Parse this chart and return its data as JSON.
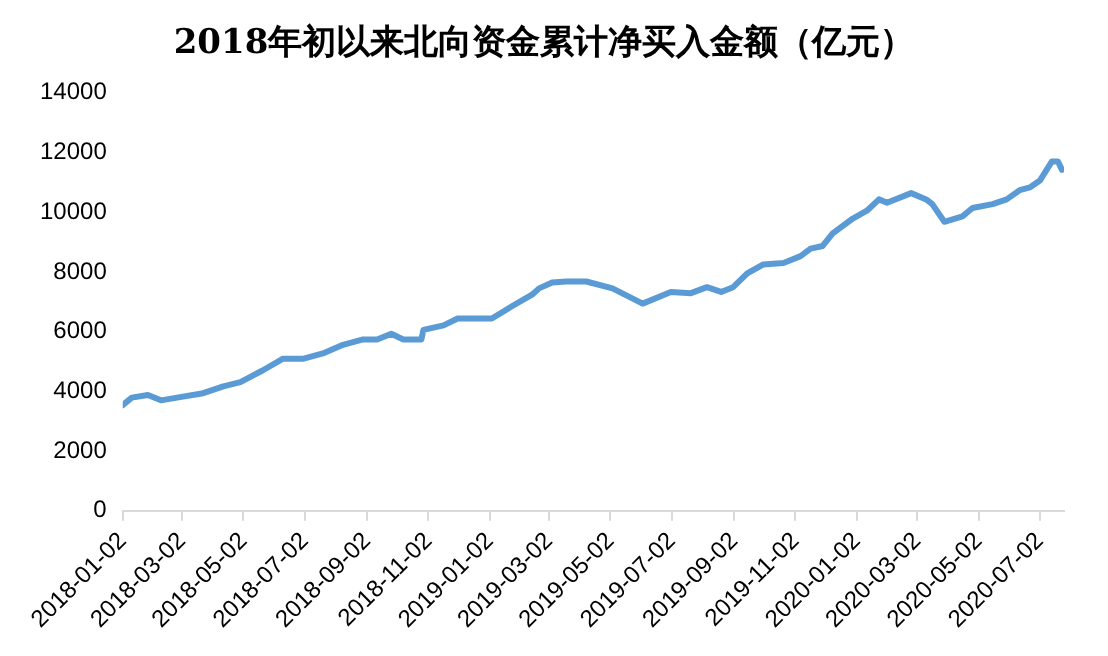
{
  "chart_data": {
    "type": "line",
    "title": "2018年初以来北向资金累计净买入金额（亿元）",
    "x": [
      "2018-01-02",
      "2018-01-11",
      "2018-01-27",
      "2018-02-09",
      "2018-02-25",
      "2018-03-23",
      "2018-04-12",
      "2018-04-29",
      "2018-05-21",
      "2018-06-10",
      "2018-06-30",
      "2018-07-20",
      "2018-08-09",
      "2018-08-29",
      "2018-09-12",
      "2018-09-26",
      "2018-10-08",
      "2018-10-26",
      "2018-10-28",
      "2018-11-17",
      "2018-12-01",
      "2019-01-04",
      "2019-01-24",
      "2019-02-13",
      "2019-02-20",
      "2019-03-05",
      "2019-03-19",
      "2019-04-08",
      "2019-05-04",
      "2019-06-03",
      "2019-07-01",
      "2019-07-21",
      "2019-08-06",
      "2019-08-20",
      "2019-09-01",
      "2019-09-15",
      "2019-10-01",
      "2019-10-21",
      "2019-11-07",
      "2019-11-17",
      "2019-11-29",
      "2019-12-09",
      "2019-12-29",
      "2020-01-12",
      "2020-01-24",
      "2020-02-01",
      "2020-02-25",
      "2020-03-11",
      "2020-03-17",
      "2020-03-29",
      "2020-04-16",
      "2020-04-26",
      "2020-05-16",
      "2020-05-30",
      "2020-06-12",
      "2020-06-22",
      "2020-07-02",
      "2020-07-14",
      "2020-07-20",
      "2020-07-24"
    ],
    "series": [
      {
        "color": "#5b9bd5",
        "values": [
          3540,
          3790,
          3880,
          3700,
          3790,
          3940,
          4170,
          4310,
          4700,
          5090,
          5090,
          5270,
          5560,
          5740,
          5740,
          5930,
          5740,
          5740,
          6060,
          6210,
          6440,
          6440,
          6850,
          7240,
          7450,
          7650,
          7680,
          7680,
          7450,
          6940,
          7330,
          7290,
          7490,
          7330,
          7490,
          7950,
          8250,
          8300,
          8530,
          8780,
          8870,
          9290,
          9790,
          10050,
          10430,
          10320,
          10640,
          10430,
          10270,
          9680,
          9860,
          10140,
          10270,
          10430,
          10740,
          10830,
          11060,
          11700,
          11700,
          11420
        ]
      }
    ],
    "xlim": [
      "2018-01-02",
      "2020-07-26"
    ],
    "xticks": [
      "2018-01-02",
      "2018-03-02",
      "2018-05-02",
      "2018-07-02",
      "2018-09-02",
      "2018-11-02",
      "2019-01-02",
      "2019-03-02",
      "2019-05-02",
      "2019-07-02",
      "2019-09-02",
      "2019-11-02",
      "2020-01-02",
      "2020-03-02",
      "2020-05-02",
      "2020-07-02"
    ],
    "ylim": [
      0,
      14000
    ],
    "yticks": [
      0,
      2000,
      4000,
      6000,
      8000,
      10000,
      12000,
      14000
    ],
    "grid": false,
    "legend": false,
    "marker": "none",
    "line_style": "solid"
  }
}
